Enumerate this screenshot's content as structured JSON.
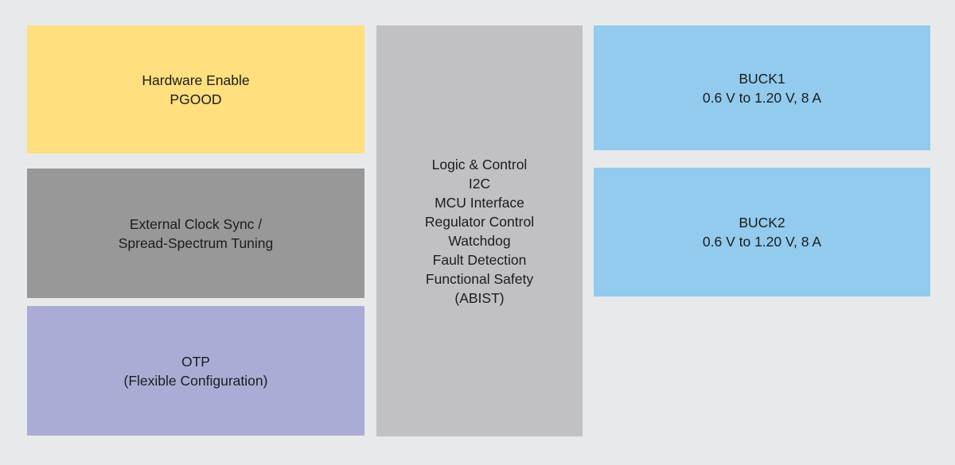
{
  "page": {
    "background": "#E8E9EB",
    "text_color": "#1C1C1C"
  },
  "diagram": {
    "columns": {
      "left": [
        {
          "name": "hardware-enable-pgood",
          "color": "#FFDF7E",
          "lines": [
            "Hardware Enable",
            "PGOOD"
          ]
        },
        {
          "name": "external-clock-sync",
          "color": "#989898",
          "lines": [
            "External Clock Sync /",
            "Spread-Spectrum Tuning"
          ]
        },
        {
          "name": "otp",
          "color": "#ABACD6",
          "lines": [
            "OTP",
            "(Flexible Configuration)"
          ]
        }
      ],
      "center": [
        {
          "name": "logic-and-control",
          "color": "#C1C1C3",
          "lines": [
            "Logic & Control",
            "I2C",
            "MCU Interface",
            "Regulator Control",
            "Watchdog",
            "Fault Detection",
            "Functional Safety",
            "(ABIST)"
          ]
        }
      ],
      "right": [
        {
          "name": "buck1",
          "color": "#92CBED",
          "lines": [
            "BUCK1",
            "0.6 V to 1.20 V, 8 A"
          ]
        },
        {
          "name": "buck2",
          "color": "#92CBED",
          "lines": [
            "BUCK2",
            "0.6 V to 1.20 V, 8 A"
          ]
        }
      ]
    }
  }
}
